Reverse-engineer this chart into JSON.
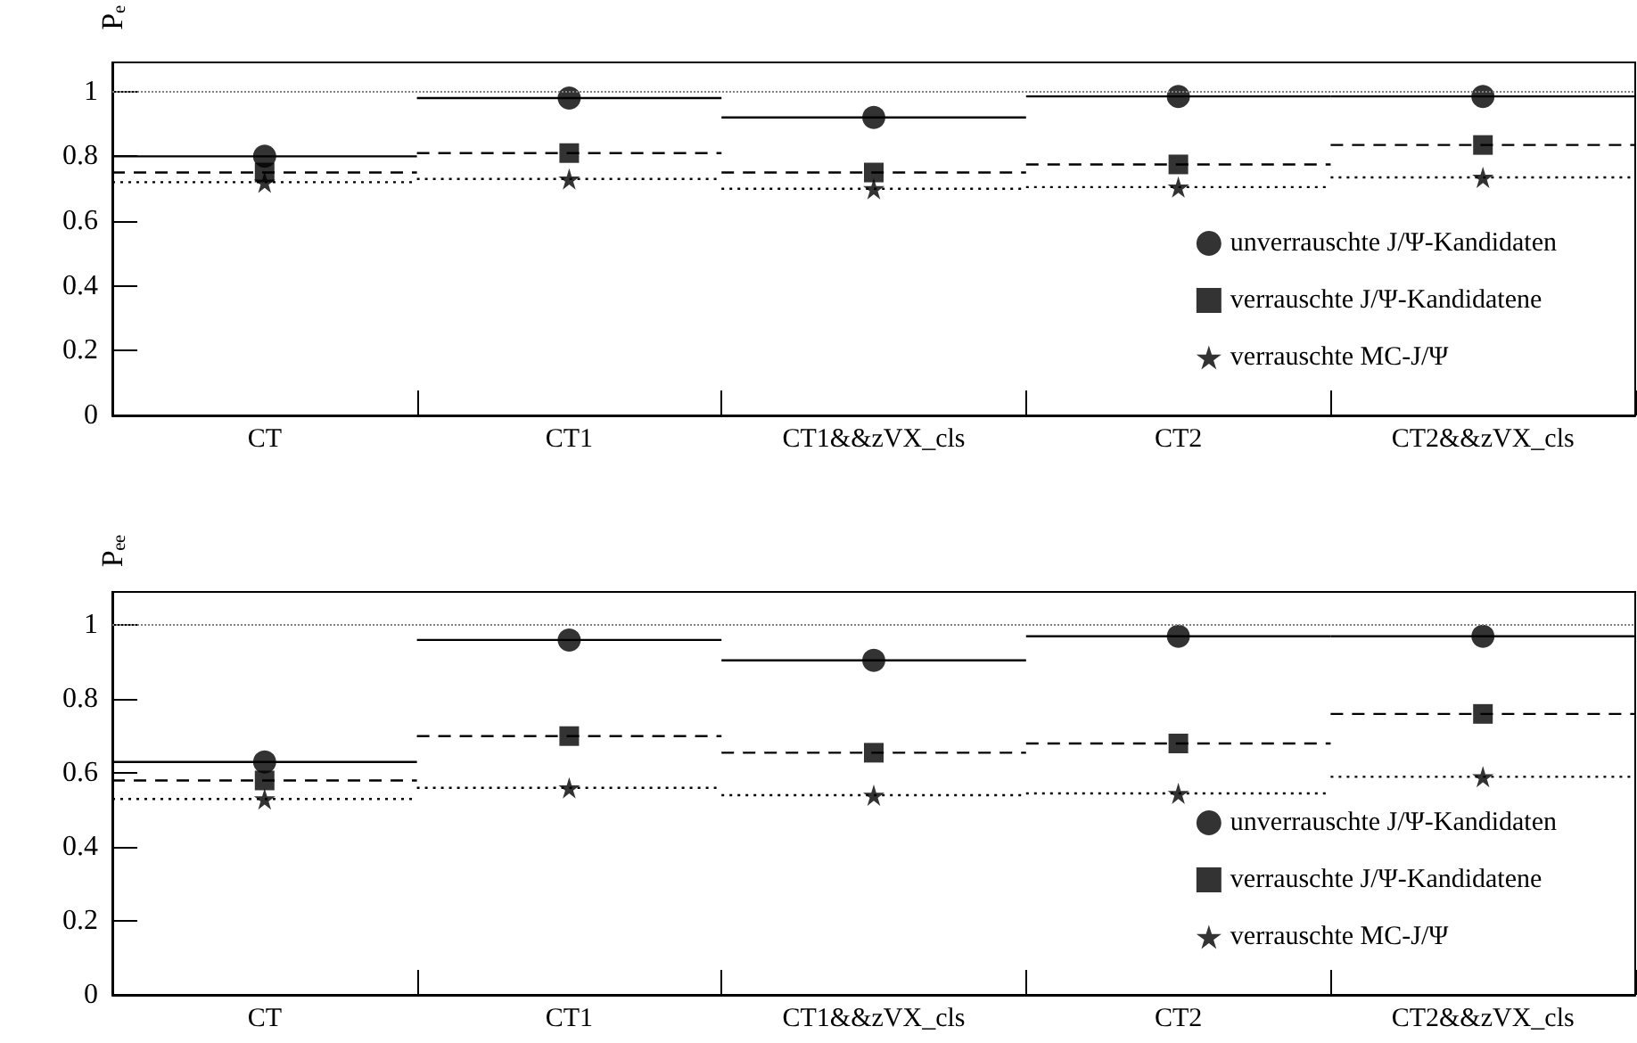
{
  "chart_data": [
    {
      "type": "scatter",
      "ylabel": "Pₑ",
      "categories": [
        "CT",
        "CT1",
        "CT1&&zVX_cls",
        "CT2",
        "CT2&&zVX_cls"
      ],
      "ylim": [
        0,
        1.09
      ],
      "yticks": [
        0,
        0.2,
        0.4,
        0.6,
        0.8,
        1
      ],
      "legend": "right",
      "grid": false,
      "ref_lines": [
        {
          "axis": "y",
          "value": 1,
          "color": "#808080",
          "line_style": "dotted"
        }
      ],
      "series": [
        {
          "name": "unverrauschte J/Ψ-Kandidaten",
          "color": "#000000",
          "marker": "circle",
          "line_style": "solid",
          "values": [
            0.8,
            0.98,
            0.92,
            0.985,
            0.985
          ]
        },
        {
          "name": "verrauschte J/Ψ-Kandidatene",
          "color": "#000000",
          "marker": "square",
          "line_style": "dashed",
          "values": [
            0.75,
            0.81,
            0.75,
            0.775,
            0.835
          ]
        },
        {
          "name": "verrauschte MC-J/Ψ",
          "color": "#000000",
          "marker": "star",
          "line_style": "dotted",
          "values": [
            0.72,
            0.73,
            0.7,
            0.705,
            0.735
          ]
        }
      ]
    },
    {
      "type": "scatter",
      "ylabel": "Pₑₑ",
      "categories": [
        "CT",
        "CT1",
        "CT1&&zVX_cls",
        "CT2",
        "CT2&&zVX_cls"
      ],
      "ylim": [
        0,
        1.09
      ],
      "yticks": [
        0,
        0.2,
        0.4,
        0.6,
        0.8,
        1
      ],
      "legend": "right",
      "grid": false,
      "ref_lines": [
        {
          "axis": "y",
          "value": 1,
          "color": "#808080",
          "line_style": "dotted"
        }
      ],
      "series": [
        {
          "name": "unverrauschte J/Ψ-Kandidaten",
          "color": "#000000",
          "marker": "circle",
          "line_style": "solid",
          "values": [
            0.63,
            0.96,
            0.905,
            0.97,
            0.97
          ]
        },
        {
          "name": "verrauschte J/Ψ-Kandidatene",
          "color": "#000000",
          "marker": "square",
          "line_style": "dashed",
          "values": [
            0.58,
            0.7,
            0.655,
            0.68,
            0.76
          ]
        },
        {
          "name": "verrauschte MC-J/Ψ",
          "color": "#000000",
          "marker": "star",
          "line_style": "dotted",
          "values": [
            0.53,
            0.56,
            0.54,
            0.545,
            0.59
          ]
        }
      ]
    }
  ]
}
